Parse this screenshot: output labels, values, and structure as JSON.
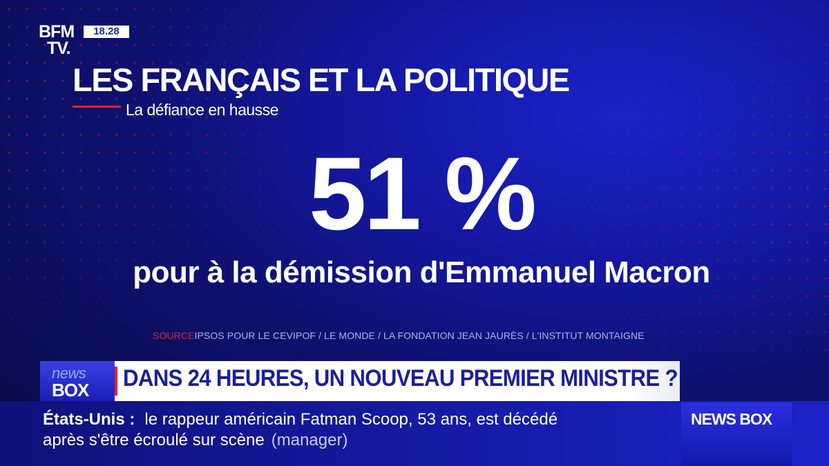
{
  "channel": {
    "logo_line1": "BFM",
    "logo_line2": "TV.",
    "clock": "18.28"
  },
  "graphic": {
    "title": "LES FRANÇAIS ET LA POLITIQUE",
    "subtitle": "La défiance en hausse",
    "big_value": "51 %",
    "big_label": "pour à la démission d'Emmanuel Macron",
    "source_key": "SOURCE",
    "source_text": "IPSOS POUR LE CEVIPOF / LE MONDE / LA FONDATION JEAN JAURÈS / L'INSTITUT MONTAIGNE"
  },
  "lower_third": {
    "badge_top": "news",
    "badge_bottom": "BOX",
    "headline": "DANS 24 HEURES, UN NOUVEAU PREMIER MINISTRE ?"
  },
  "ticker": {
    "place": "États-Unis :",
    "line1": "le rappeur américain Fatman Scoop, 53 ans, est décédé",
    "line2": "après s'être écroulé sur scène",
    "credit": "(manager)",
    "tag": "NEWS BOX"
  },
  "colors": {
    "accent_red": "#e3242b",
    "brand_blue": "#1b2098"
  }
}
